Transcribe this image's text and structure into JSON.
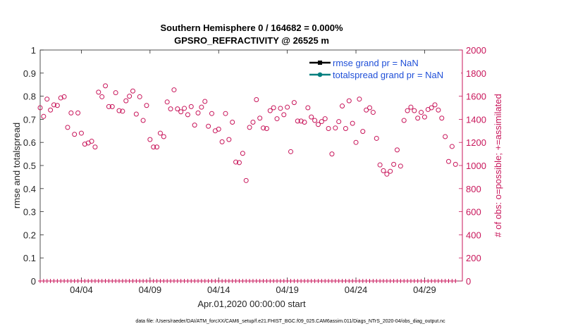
{
  "chart_data": {
    "type": "scatter",
    "title": "Southern Hemisphere 0 / 164682 = 0.000%",
    "subtitle": "GPSRO_REFRACTIVITY @ 26525 m",
    "xlabel": "Apr.01,2020 00:00:00 start",
    "ylabel": "rmse and totalspread",
    "y2label": "# of obs: o=possible; +=assimilated",
    "footnote": "data file: /Users/raeder/DAI/ATM_forcXX/CAM6_setup/f.e21.FHIST_BGC.f09_025.CAM6assim.011/Diags_NTrS_2020-04/obs_diag_output.nc",
    "xlim": [
      0,
      30.75
    ],
    "ylim": [
      0,
      1
    ],
    "y2lim": [
      0,
      2000
    ],
    "x_ticks": [
      {
        "x": 3,
        "label": "04/04"
      },
      {
        "x": 8,
        "label": "04/09"
      },
      {
        "x": 13,
        "label": "04/14"
      },
      {
        "x": 18,
        "label": "04/19"
      },
      {
        "x": 23,
        "label": "04/24"
      },
      {
        "x": 28,
        "label": "04/29"
      }
    ],
    "y_ticks": [
      "0",
      "0.1",
      "0.2",
      "0.3",
      "0.4",
      "0.5",
      "0.6",
      "0.7",
      "0.8",
      "0.9",
      "1"
    ],
    "y2_ticks": [
      "0",
      "200",
      "400",
      "600",
      "800",
      "1000",
      "1200",
      "1400",
      "1600",
      "1800",
      "2000"
    ],
    "legend": {
      "placement": "top-right",
      "entries": [
        {
          "label": "rmse grand pr = NaN",
          "color": "#000000"
        },
        {
          "label": "totalspread grand pr = NaN",
          "color": "#007f7f"
        }
      ]
    },
    "colors": {
      "obs": "#c8155a",
      "right_axis": "#c8155a",
      "rmse": "#000000",
      "spread": "#007f7f",
      "legend_text": "#1f4fd8"
    },
    "series": [
      {
        "name": "possible",
        "marker": "circle",
        "step_days": 0.25,
        "values": [
          1500,
          1425,
          1575,
          1480,
          1525,
          1520,
          1585,
          1595,
          1330,
          1455,
          1270,
          1455,
          1280,
          1185,
          1195,
          1210,
          1160,
          1635,
          1595,
          1690,
          1510,
          1510,
          1630,
          1475,
          1470,
          1560,
          1600,
          1645,
          1445,
          1595,
          1390,
          1520,
          1225,
          1160,
          1160,
          1280,
          1250,
          1550,
          1490,
          1655,
          1490,
          1465,
          1495,
          1440,
          1510,
          1350,
          1455,
          1505,
          1555,
          1340,
          1450,
          1300,
          1315,
          1205,
          1450,
          1225,
          1375,
          1030,
          1025,
          1105,
          870,
          1330,
          1375,
          1570,
          1410,
          1325,
          1320,
          1475,
          1500,
          1405,
          1495,
          1440,
          1505,
          1120,
          1545,
          1385,
          1385,
          1375,
          1500,
          1420,
          1390,
          1355,
          1380,
          1405,
          1320,
          1100,
          1325,
          1380,
          1515,
          1320,
          1560,
          1365,
          1200,
          1575,
          1295,
          1480,
          1500,
          1460,
          1235,
          1005,
          955,
          925,
          950,
          1010,
          1135,
          995,
          1390,
          1475,
          1505,
          1475,
          1410,
          1460,
          1420,
          1485,
          1500,
          1525,
          1480,
          1410,
          1250,
          1035,
          1165,
          1010
        ]
      },
      {
        "name": "assimilated",
        "marker": "plus",
        "step_days": 0.25,
        "value": 0
      }
    ]
  }
}
